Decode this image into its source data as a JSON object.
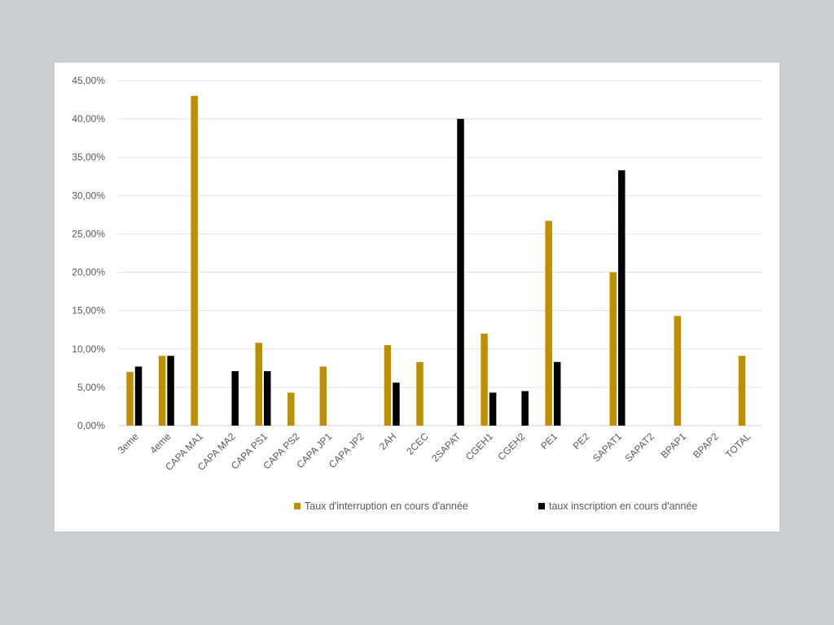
{
  "chart_data": {
    "type": "bar",
    "title": "",
    "xlabel": "",
    "ylabel": "",
    "ylim": [
      0,
      45
    ],
    "yticks": [
      "0,00%",
      "5,00%",
      "10,00%",
      "15,00%",
      "20,00%",
      "25,00%",
      "30,00%",
      "35,00%",
      "40,00%",
      "45,00%"
    ],
    "grid": true,
    "legend_position": "bottom",
    "categories": [
      "3eme",
      "4eme",
      "CAPA MA1",
      "CAPA MA2",
      "CAPA PS1",
      "CAPA PS2",
      "CAPA JP1",
      "CAPA JP2",
      "2AH",
      "2CEC",
      "2SAPAT",
      "CGEH1",
      "CGEH2",
      "PE1",
      "PE2",
      "SAPAT1",
      "SAPAT2",
      "BPAP1",
      "BPAP2",
      "TOTAL"
    ],
    "series": [
      {
        "name": "Taux d'interruption en cours d'année",
        "color": "#bf8f00",
        "values": [
          7.0,
          9.1,
          43.0,
          0,
          10.8,
          4.3,
          7.7,
          0,
          10.5,
          8.3,
          0,
          12.0,
          0,
          26.7,
          0,
          20.0,
          0,
          14.3,
          0,
          9.1
        ]
      },
      {
        "name": "taux inscription en cours d'année",
        "color": "#000000",
        "values": [
          7.7,
          9.1,
          0,
          7.1,
          7.1,
          0,
          0,
          0,
          5.6,
          0,
          40.0,
          4.3,
          4.5,
          8.3,
          0,
          33.3,
          0,
          0,
          0,
          0
        ]
      }
    ]
  }
}
